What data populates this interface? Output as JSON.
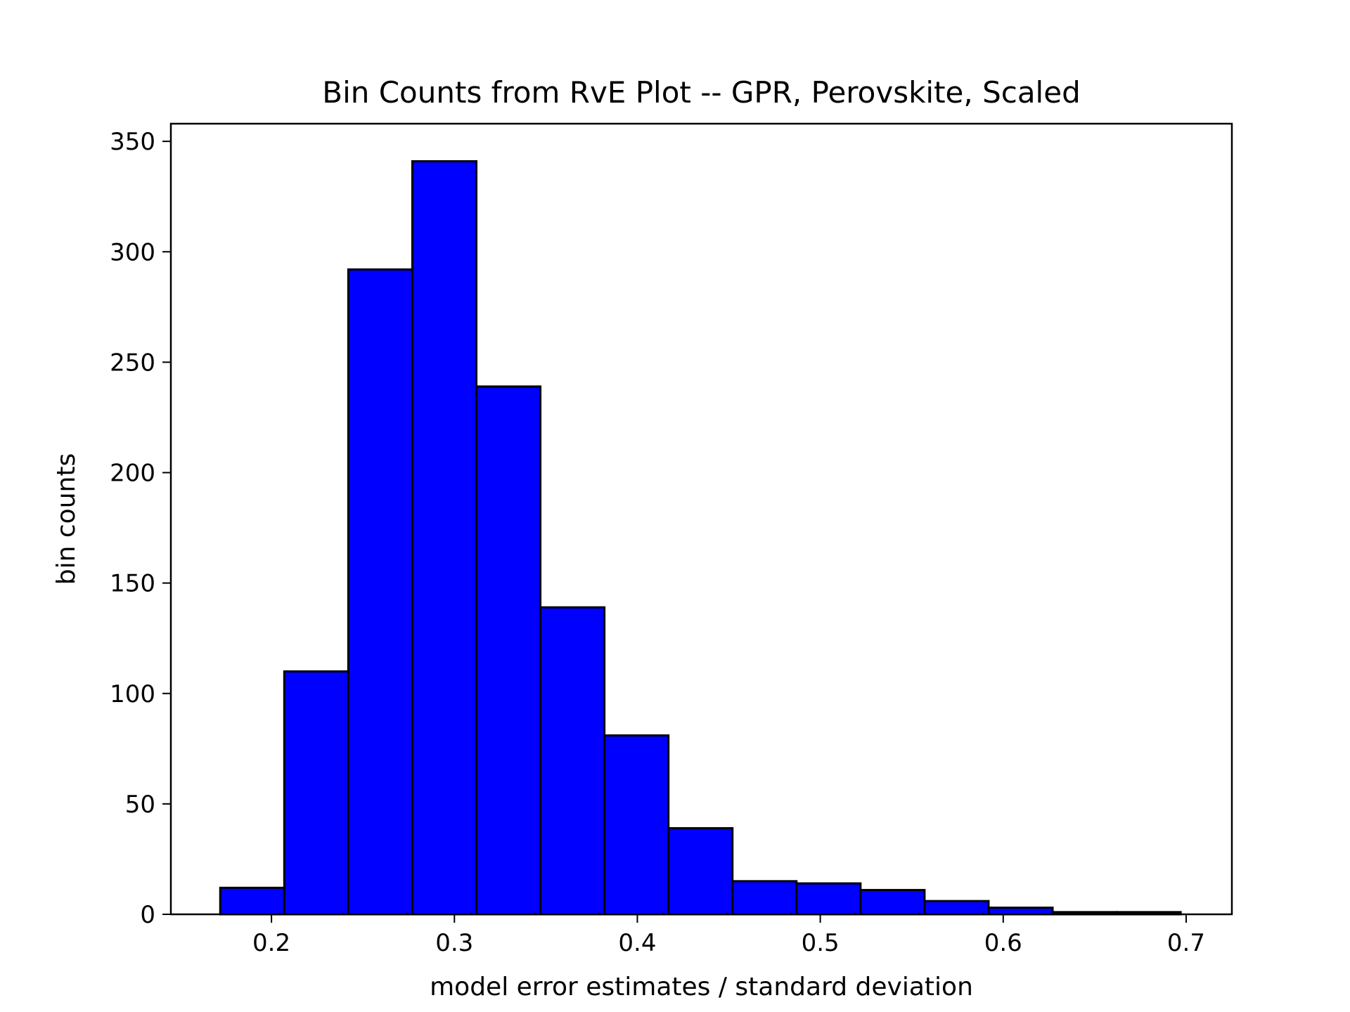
{
  "chart_data": {
    "type": "bar",
    "title": "Bin Counts from RvE Plot -- GPR, Perovskite, Scaled",
    "xlabel": "model error estimates / standard deviation",
    "ylabel": "bin counts",
    "xlim": [
      0.145,
      0.725
    ],
    "ylim": [
      0,
      358
    ],
    "grid": false,
    "bar_color": "#0000ff",
    "edge_color": "#000000",
    "x_ticks": [
      0.2,
      0.3,
      0.4,
      0.5,
      0.6,
      0.7
    ],
    "x_tick_labels": [
      "0.2",
      "0.3",
      "0.4",
      "0.5",
      "0.6",
      "0.7"
    ],
    "y_ticks": [
      0,
      50,
      100,
      150,
      200,
      250,
      300,
      350
    ],
    "y_tick_labels": [
      "0",
      "50",
      "100",
      "150",
      "200",
      "250",
      "300",
      "350"
    ],
    "bins": [
      {
        "x0": 0.172,
        "x1": 0.207,
        "value": 12
      },
      {
        "x0": 0.207,
        "x1": 0.242,
        "value": 110
      },
      {
        "x0": 0.242,
        "x1": 0.277,
        "value": 292
      },
      {
        "x0": 0.277,
        "x1": 0.312,
        "value": 341
      },
      {
        "x0": 0.312,
        "x1": 0.347,
        "value": 239
      },
      {
        "x0": 0.347,
        "x1": 0.382,
        "value": 139
      },
      {
        "x0": 0.382,
        "x1": 0.417,
        "value": 81
      },
      {
        "x0": 0.417,
        "x1": 0.452,
        "value": 39
      },
      {
        "x0": 0.452,
        "x1": 0.487,
        "value": 15
      },
      {
        "x0": 0.487,
        "x1": 0.522,
        "value": 14
      },
      {
        "x0": 0.522,
        "x1": 0.557,
        "value": 11
      },
      {
        "x0": 0.557,
        "x1": 0.592,
        "value": 6
      },
      {
        "x0": 0.592,
        "x1": 0.627,
        "value": 3
      },
      {
        "x0": 0.627,
        "x1": 0.662,
        "value": 1
      },
      {
        "x0": 0.662,
        "x1": 0.697,
        "value": 1
      }
    ]
  }
}
